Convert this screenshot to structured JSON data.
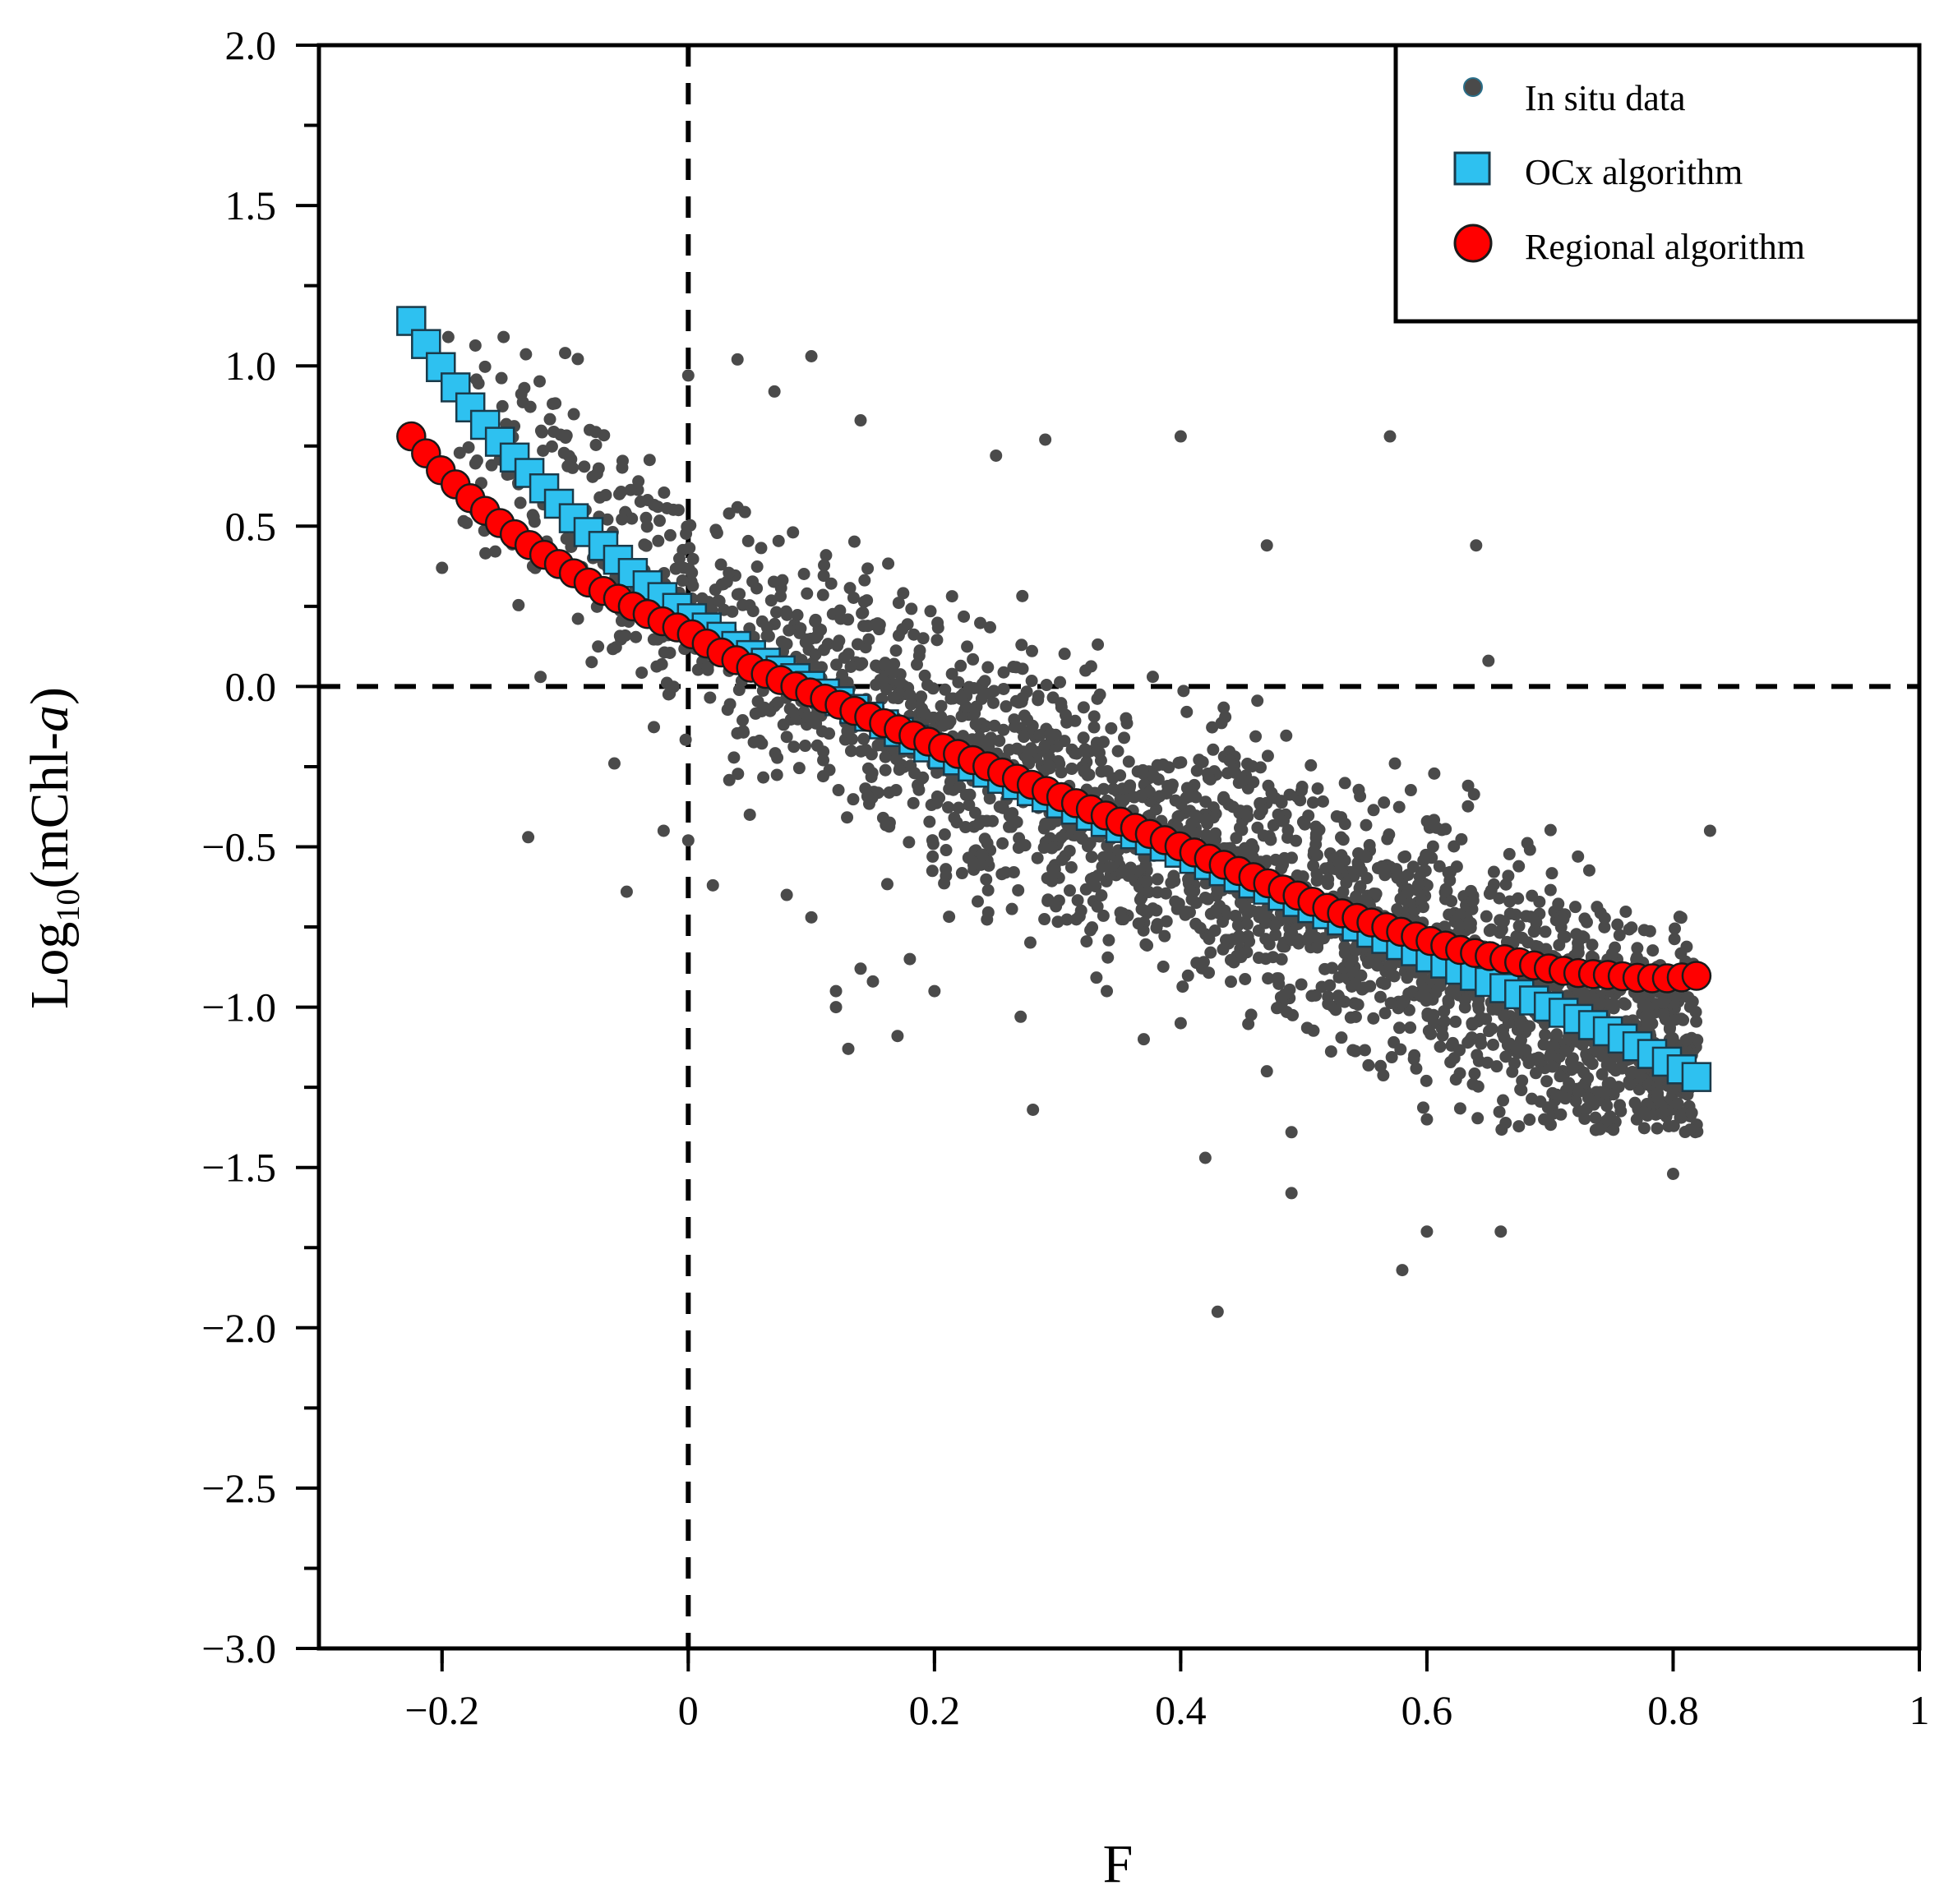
{
  "chart_data": {
    "type": "scatter",
    "title": "",
    "xlabel": "F",
    "ylabel": {
      "prefix": "Log",
      "subscript": "10",
      "body": "(mChl-",
      "italic": "a",
      "suffix": ")"
    },
    "xlim": [
      -0.3,
      1.0
    ],
    "ylim": [
      -3.0,
      2.0
    ],
    "x_ticks": [
      -0.2,
      0,
      0.2,
      0.4,
      0.6,
      0.8,
      1
    ],
    "x_tick_labels": [
      "−0.2",
      "0",
      "0.2",
      "0.4",
      "0.6",
      "0.8",
      "1"
    ],
    "y_ticks": [
      2.0,
      1.5,
      1.0,
      0.5,
      0.0,
      -0.5,
      -1.0,
      -1.5,
      -2.0,
      -2.5,
      -3.0
    ],
    "y_tick_labels": [
      "2.0",
      "1.5",
      "1.0",
      "0.5",
      "0.0",
      "−0.5",
      "−1.0",
      "−1.5",
      "−2.0",
      "−2.5",
      "−3.0"
    ],
    "reference_lines": [
      {
        "axis": "x",
        "value": 0,
        "style": "dashed"
      },
      {
        "axis": "y",
        "value": 0,
        "style": "dashed"
      }
    ],
    "legend": {
      "position": "top-right",
      "entries": [
        "In situ data",
        "OCx algorithm",
        "Regional algorithm"
      ]
    },
    "series": [
      {
        "name": "In situ data",
        "marker": "circle-small",
        "color": "#4a4a4a",
        "note": "dense point cloud; listed points are representative scatter",
        "x": [
          -0.13,
          -0.12,
          -0.06,
          -0.05,
          -0.02,
          0.0,
          0.02,
          0.05,
          0.08,
          0.1,
          0.12,
          0.12,
          0.13,
          0.14,
          0.15,
          0.17,
          0.18,
          0.2,
          0.27,
          0.28,
          0.34,
          0.37,
          0.4,
          0.42,
          0.43,
          0.47,
          0.49,
          0.49,
          0.57,
          0.58,
          0.6,
          0.6,
          0.62,
          0.64,
          0.66,
          0.8,
          0.82,
          0.83,
          -0.2,
          -0.18,
          -0.15,
          -0.1,
          -0.08,
          0.0,
          0.04,
          0.07,
          0.1,
          0.14,
          0.25,
          0.29,
          0.4,
          0.47,
          0.65
        ],
        "y": [
          -0.47,
          0.03,
          -0.24,
          -0.64,
          -0.45,
          -0.48,
          -0.62,
          -0.4,
          -0.65,
          -0.72,
          -0.95,
          -1.0,
          -1.13,
          -0.88,
          -0.92,
          -1.09,
          -0.85,
          -0.95,
          -1.03,
          -1.32,
          -0.95,
          -1.1,
          -1.05,
          -1.47,
          -1.95,
          -1.2,
          -1.39,
          -1.58,
          0.78,
          -1.82,
          -1.7,
          -1.35,
          -1.12,
          0.44,
          -1.7,
          -1.52,
          -1.2,
          -0.45,
          0.37,
          0.51,
          1.09,
          1.04,
          0.8,
          0.97,
          1.02,
          0.92,
          1.03,
          0.83,
          0.72,
          0.77,
          0.78,
          0.44,
          0.08
        ]
      },
      {
        "name": "OCx algorithm",
        "marker": "square",
        "color": "#2ec1f0",
        "x": [
          -0.225,
          -0.2,
          -0.175,
          -0.15,
          -0.125,
          -0.1,
          -0.075,
          -0.05,
          -0.025,
          0.0,
          0.025,
          0.05,
          0.075,
          0.1,
          0.125,
          0.15,
          0.175,
          0.2,
          0.225,
          0.25,
          0.275,
          0.3,
          0.325,
          0.35,
          0.375,
          0.4,
          0.425,
          0.45,
          0.475,
          0.5,
          0.525,
          0.55,
          0.575,
          0.6,
          0.625,
          0.65,
          0.675,
          0.7,
          0.725,
          0.75,
          0.775,
          0.8,
          0.825,
          0.83
        ],
        "y": [
          1.14,
          0.99,
          0.86,
          0.75,
          0.65,
          0.55,
          0.46,
          0.37,
          0.29,
          0.22,
          0.16,
          0.1,
          0.05,
          0.0,
          -0.05,
          -0.1,
          -0.15,
          -0.2,
          -0.24,
          -0.28,
          -0.32,
          -0.36,
          -0.4,
          -0.44,
          -0.48,
          -0.52,
          -0.56,
          -0.6,
          -0.64,
          -0.68,
          -0.72,
          -0.76,
          -0.8,
          -0.84,
          -0.88,
          -0.92,
          -0.96,
          -1.0,
          -1.04,
          -1.08,
          -1.13,
          -1.18,
          -1.23,
          -1.25
        ]
      },
      {
        "name": "Regional algorithm",
        "marker": "circle",
        "color": "#ff0000",
        "x": [
          -0.225,
          -0.2,
          -0.175,
          -0.15,
          -0.125,
          -0.1,
          -0.075,
          -0.05,
          -0.025,
          0.0,
          0.025,
          0.05,
          0.075,
          0.1,
          0.125,
          0.15,
          0.175,
          0.2,
          0.225,
          0.25,
          0.275,
          0.3,
          0.325,
          0.35,
          0.375,
          0.4,
          0.425,
          0.45,
          0.475,
          0.5,
          0.525,
          0.55,
          0.575,
          0.6,
          0.625,
          0.65,
          0.675,
          0.7,
          0.725,
          0.75,
          0.775,
          0.8,
          0.825,
          0.83
        ],
        "y": [
          0.78,
          0.67,
          0.58,
          0.5,
          0.43,
          0.37,
          0.31,
          0.26,
          0.21,
          0.17,
          0.11,
          0.06,
          0.02,
          -0.02,
          -0.06,
          -0.1,
          -0.14,
          -0.18,
          -0.22,
          -0.26,
          -0.3,
          -0.34,
          -0.38,
          -0.42,
          -0.46,
          -0.5,
          -0.54,
          -0.58,
          -0.62,
          -0.66,
          -0.7,
          -0.73,
          -0.76,
          -0.79,
          -0.82,
          -0.84,
          -0.86,
          -0.88,
          -0.895,
          -0.9,
          -0.91,
          -0.91,
          -0.9,
          -0.9
        ]
      }
    ]
  }
}
